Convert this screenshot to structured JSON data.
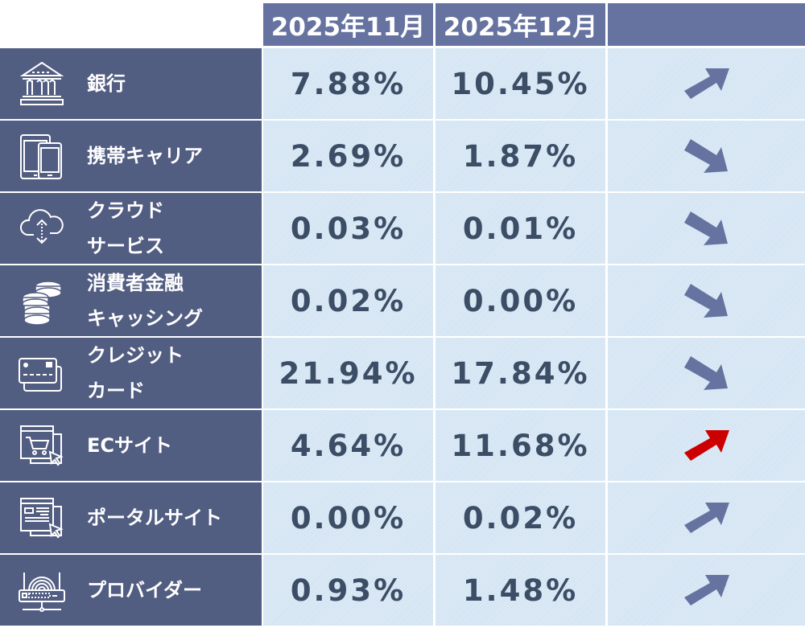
{
  "header": {
    "col1": "2025年11月",
    "col2": "2025年12月",
    "col3": ""
  },
  "colors": {
    "header_bg": "#6673a0",
    "label_bg": "#525d82",
    "cell_bg": "#d3e4f3",
    "value_text": "#3c4d66",
    "arrow_normal": "#6673a0",
    "arrow_highlight": "#cc0000"
  },
  "rows": [
    {
      "icon": "bank-icon",
      "label_line1": "銀行",
      "label_line2": "",
      "nov": "7.88%",
      "dec": "10.45%",
      "trend": "up",
      "highlight": false
    },
    {
      "icon": "mobile-devices-icon",
      "label_line1": "携帯キャリア",
      "label_line2": "",
      "nov": "2.69%",
      "dec": "1.87%",
      "trend": "down",
      "highlight": false
    },
    {
      "icon": "cloud-sync-icon",
      "label_line1": "クラウド",
      "label_line2": "サービス",
      "nov": "0.03%",
      "dec": "0.01%",
      "trend": "down",
      "highlight": false
    },
    {
      "icon": "coin-stack-icon",
      "label_line1": "消費者金融",
      "label_line2": "キャッシング",
      "nov": "0.02%",
      "dec": "0.00%",
      "trend": "down",
      "highlight": false
    },
    {
      "icon": "credit-card-icon",
      "label_line1": "クレジット",
      "label_line2": "カード",
      "nov": "21.94%",
      "dec": "17.84%",
      "trend": "down",
      "highlight": false
    },
    {
      "icon": "shopping-cart-window-icon",
      "label_line1": "ECサイト",
      "label_line2": "",
      "nov": "4.64%",
      "dec": "11.68%",
      "trend": "up",
      "highlight": true
    },
    {
      "icon": "portal-window-icon",
      "label_line1": "ポータルサイト",
      "label_line2": "",
      "nov": "0.00%",
      "dec": "0.02%",
      "trend": "up",
      "highlight": false
    },
    {
      "icon": "router-icon",
      "label_line1": "プロバイダー",
      "label_line2": "",
      "nov": "0.93%",
      "dec": "1.48%",
      "trend": "up",
      "highlight": false
    }
  ]
}
